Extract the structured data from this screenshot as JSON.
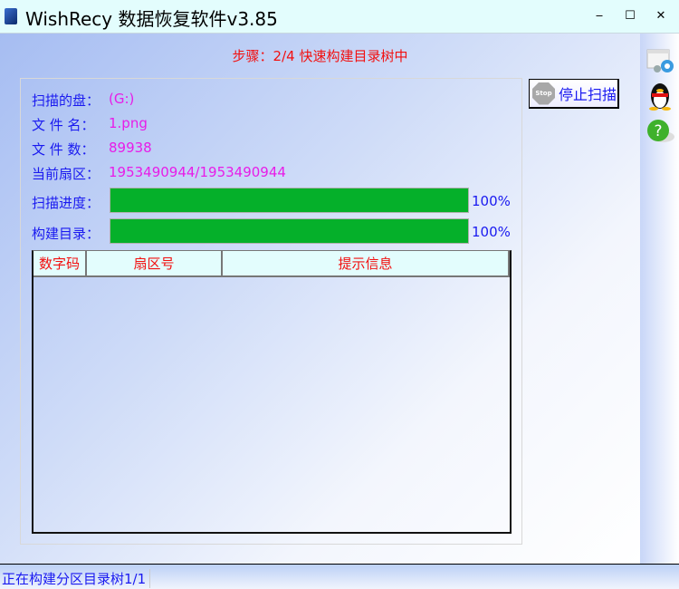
{
  "window": {
    "title": "WishRecy 数据恢复软件v3.85",
    "minimize": "‒",
    "maximize": "☐",
    "close": "✕"
  },
  "step": "步骤：2/4 快速构建目录树中",
  "info": {
    "disk_label": "扫描的盘：",
    "disk_value": "(G:)",
    "file_name_label": "文 件 名：",
    "file_name_value": "1.png",
    "file_count_label": "文 件 数：",
    "file_count_value": "89938",
    "sector_label": "当前扇区：",
    "sector_value": "1953490944/1953490944"
  },
  "progress": {
    "scan_label": "扫描进度：",
    "scan_percent": 100,
    "scan_text": "100%",
    "build_label": "构建目录：",
    "build_percent": 100,
    "build_text": "100%",
    "fill_color": "#05b02a"
  },
  "table": {
    "columns": [
      "数字码",
      "扇区号",
      "提示信息"
    ],
    "rows": []
  },
  "stop_button": {
    "icon_text": "Stop",
    "label": "停止扫描"
  },
  "sidebar": {
    "icons": [
      "settings-window-icon",
      "qq-penguin-icon",
      "help-icon"
    ]
  },
  "status": "正在构建分区目录树1/1"
}
